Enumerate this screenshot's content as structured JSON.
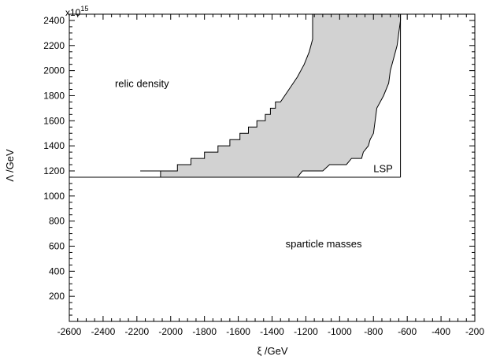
{
  "chart_data": {
    "type": "area",
    "title": "",
    "xlabel": "ξ /GeV",
    "ylabel": "Λ /GeV",
    "y_multiplier": "x10",
    "y_multiplier_exp": "15",
    "xlim": [
      -2600,
      -200
    ],
    "ylim": [
      0,
      2450
    ],
    "xticks": [
      -2600,
      -2400,
      -2200,
      -2000,
      -1800,
      -1600,
      -1400,
      -1200,
      -1000,
      -800,
      -600,
      -400,
      -200
    ],
    "yticks": [
      200,
      400,
      600,
      800,
      1000,
      1200,
      1400,
      1600,
      1800,
      2000,
      2200,
      2400
    ],
    "grid": false,
    "legend": "none",
    "region_labels": [
      {
        "text": "relic density",
        "x": -2330,
        "y": 1870
      },
      {
        "text": "LSP",
        "x": -800,
        "y": 1190
      },
      {
        "text": "sparticle masses",
        "x": -1320,
        "y": 590
      }
    ],
    "excluded_box": {
      "x0": -2600,
      "x1": -640,
      "y0": 1150,
      "y1": 2450
    },
    "allowed_region": {
      "color": "#d2d2d2",
      "left_boundary": [
        [
          -2060,
          1150
        ],
        [
          -2060,
          1200
        ],
        [
          -1960,
          1200
        ],
        [
          -1960,
          1250
        ],
        [
          -1880,
          1250
        ],
        [
          -1880,
          1300
        ],
        [
          -1800,
          1300
        ],
        [
          -1800,
          1350
        ],
        [
          -1720,
          1350
        ],
        [
          -1720,
          1400
        ],
        [
          -1650,
          1400
        ],
        [
          -1650,
          1450
        ],
        [
          -1590,
          1450
        ],
        [
          -1590,
          1500
        ],
        [
          -1540,
          1500
        ],
        [
          -1540,
          1550
        ],
        [
          -1490,
          1550
        ],
        [
          -1490,
          1600
        ],
        [
          -1440,
          1600
        ],
        [
          -1440,
          1650
        ],
        [
          -1410,
          1650
        ],
        [
          -1410,
          1700
        ],
        [
          -1380,
          1700
        ],
        [
          -1380,
          1750
        ],
        [
          -1350,
          1750
        ],
        [
          -1300,
          1850
        ],
        [
          -1250,
          1950
        ],
        [
          -1210,
          2050
        ],
        [
          -1180,
          2150
        ],
        [
          -1160,
          2250
        ],
        [
          -1160,
          2450
        ]
      ],
      "right_boundary": [
        [
          -1250,
          1150
        ],
        [
          -1220,
          1200
        ],
        [
          -1100,
          1200
        ],
        [
          -1060,
          1250
        ],
        [
          -960,
          1250
        ],
        [
          -930,
          1300
        ],
        [
          -870,
          1300
        ],
        [
          -860,
          1350
        ],
        [
          -830,
          1400
        ],
        [
          -820,
          1450
        ],
        [
          -800,
          1500
        ],
        [
          -790,
          1600
        ],
        [
          -780,
          1700
        ],
        [
          -740,
          1800
        ],
        [
          -710,
          1900
        ],
        [
          -700,
          2000
        ],
        [
          -680,
          2100
        ],
        [
          -660,
          2200
        ],
        [
          -650,
          2300
        ],
        [
          -640,
          2400
        ],
        [
          -640,
          2450
        ]
      ],
      "bottom_stub": [
        [
          -2180,
          1200
        ],
        [
          -2060,
          1200
        ]
      ]
    }
  }
}
